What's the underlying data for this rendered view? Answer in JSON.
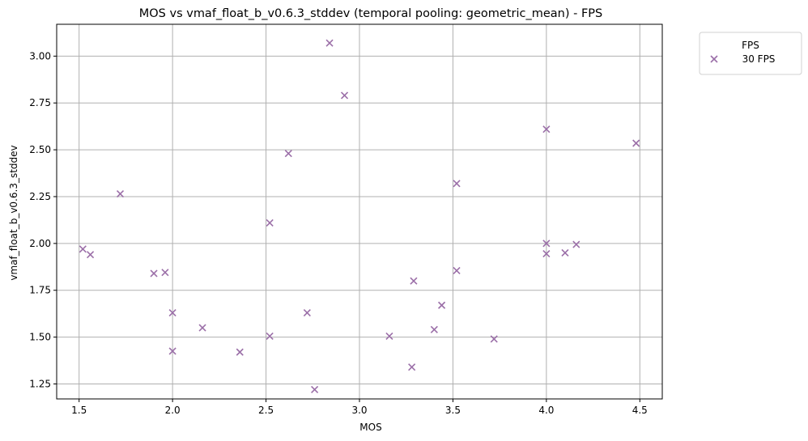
{
  "chart_data": {
    "type": "scatter",
    "title": "MOS vs vmaf_float_b_v0.6.3_stddev (temporal pooling: geometric_mean) - FPS",
    "xlabel": "MOS",
    "ylabel": "vmaf_float_b_v0.6.3_stddev",
    "xlim": [
      1.38,
      4.62
    ],
    "ylim": [
      1.17,
      3.17
    ],
    "xticks": [
      1.5,
      2.0,
      2.5,
      3.0,
      3.5,
      4.0,
      4.5
    ],
    "xtick_labels": [
      "1.5",
      "2.0",
      "2.5",
      "3.0",
      "3.5",
      "4.0",
      "4.5"
    ],
    "yticks": [
      1.25,
      1.5,
      1.75,
      2.0,
      2.25,
      2.5,
      2.75,
      3.0
    ],
    "ytick_labels": [
      "1.25",
      "1.50",
      "1.75",
      "2.00",
      "2.25",
      "2.50",
      "2.75",
      "3.00"
    ],
    "grid": true,
    "legend": {
      "title": "FPS",
      "placement": "outside-top-right"
    },
    "marker": "x",
    "series": [
      {
        "name": "30 FPS",
        "color": "#9b6fa8",
        "points": [
          [
            1.52,
            1.97
          ],
          [
            1.56,
            1.94
          ],
          [
            1.72,
            2.265
          ],
          [
            1.9,
            1.84
          ],
          [
            1.96,
            1.845
          ],
          [
            2.0,
            1.63
          ],
          [
            2.0,
            1.425
          ],
          [
            2.16,
            1.55
          ],
          [
            2.36,
            1.42
          ],
          [
            2.52,
            2.11
          ],
          [
            2.52,
            1.505
          ],
          [
            2.62,
            2.48
          ],
          [
            2.72,
            1.63
          ],
          [
            2.76,
            1.22
          ],
          [
            2.84,
            3.07
          ],
          [
            2.92,
            2.79
          ],
          [
            3.16,
            1.505
          ],
          [
            3.28,
            1.34
          ],
          [
            3.29,
            1.8
          ],
          [
            3.4,
            1.54
          ],
          [
            3.44,
            1.67
          ],
          [
            3.52,
            2.32
          ],
          [
            3.52,
            1.855
          ],
          [
            3.72,
            1.49
          ],
          [
            4.0,
            2.61
          ],
          [
            4.0,
            2.0
          ],
          [
            4.0,
            1.945
          ],
          [
            4.1,
            1.95
          ],
          [
            4.16,
            1.995
          ],
          [
            4.48,
            2.535
          ]
        ]
      }
    ]
  }
}
